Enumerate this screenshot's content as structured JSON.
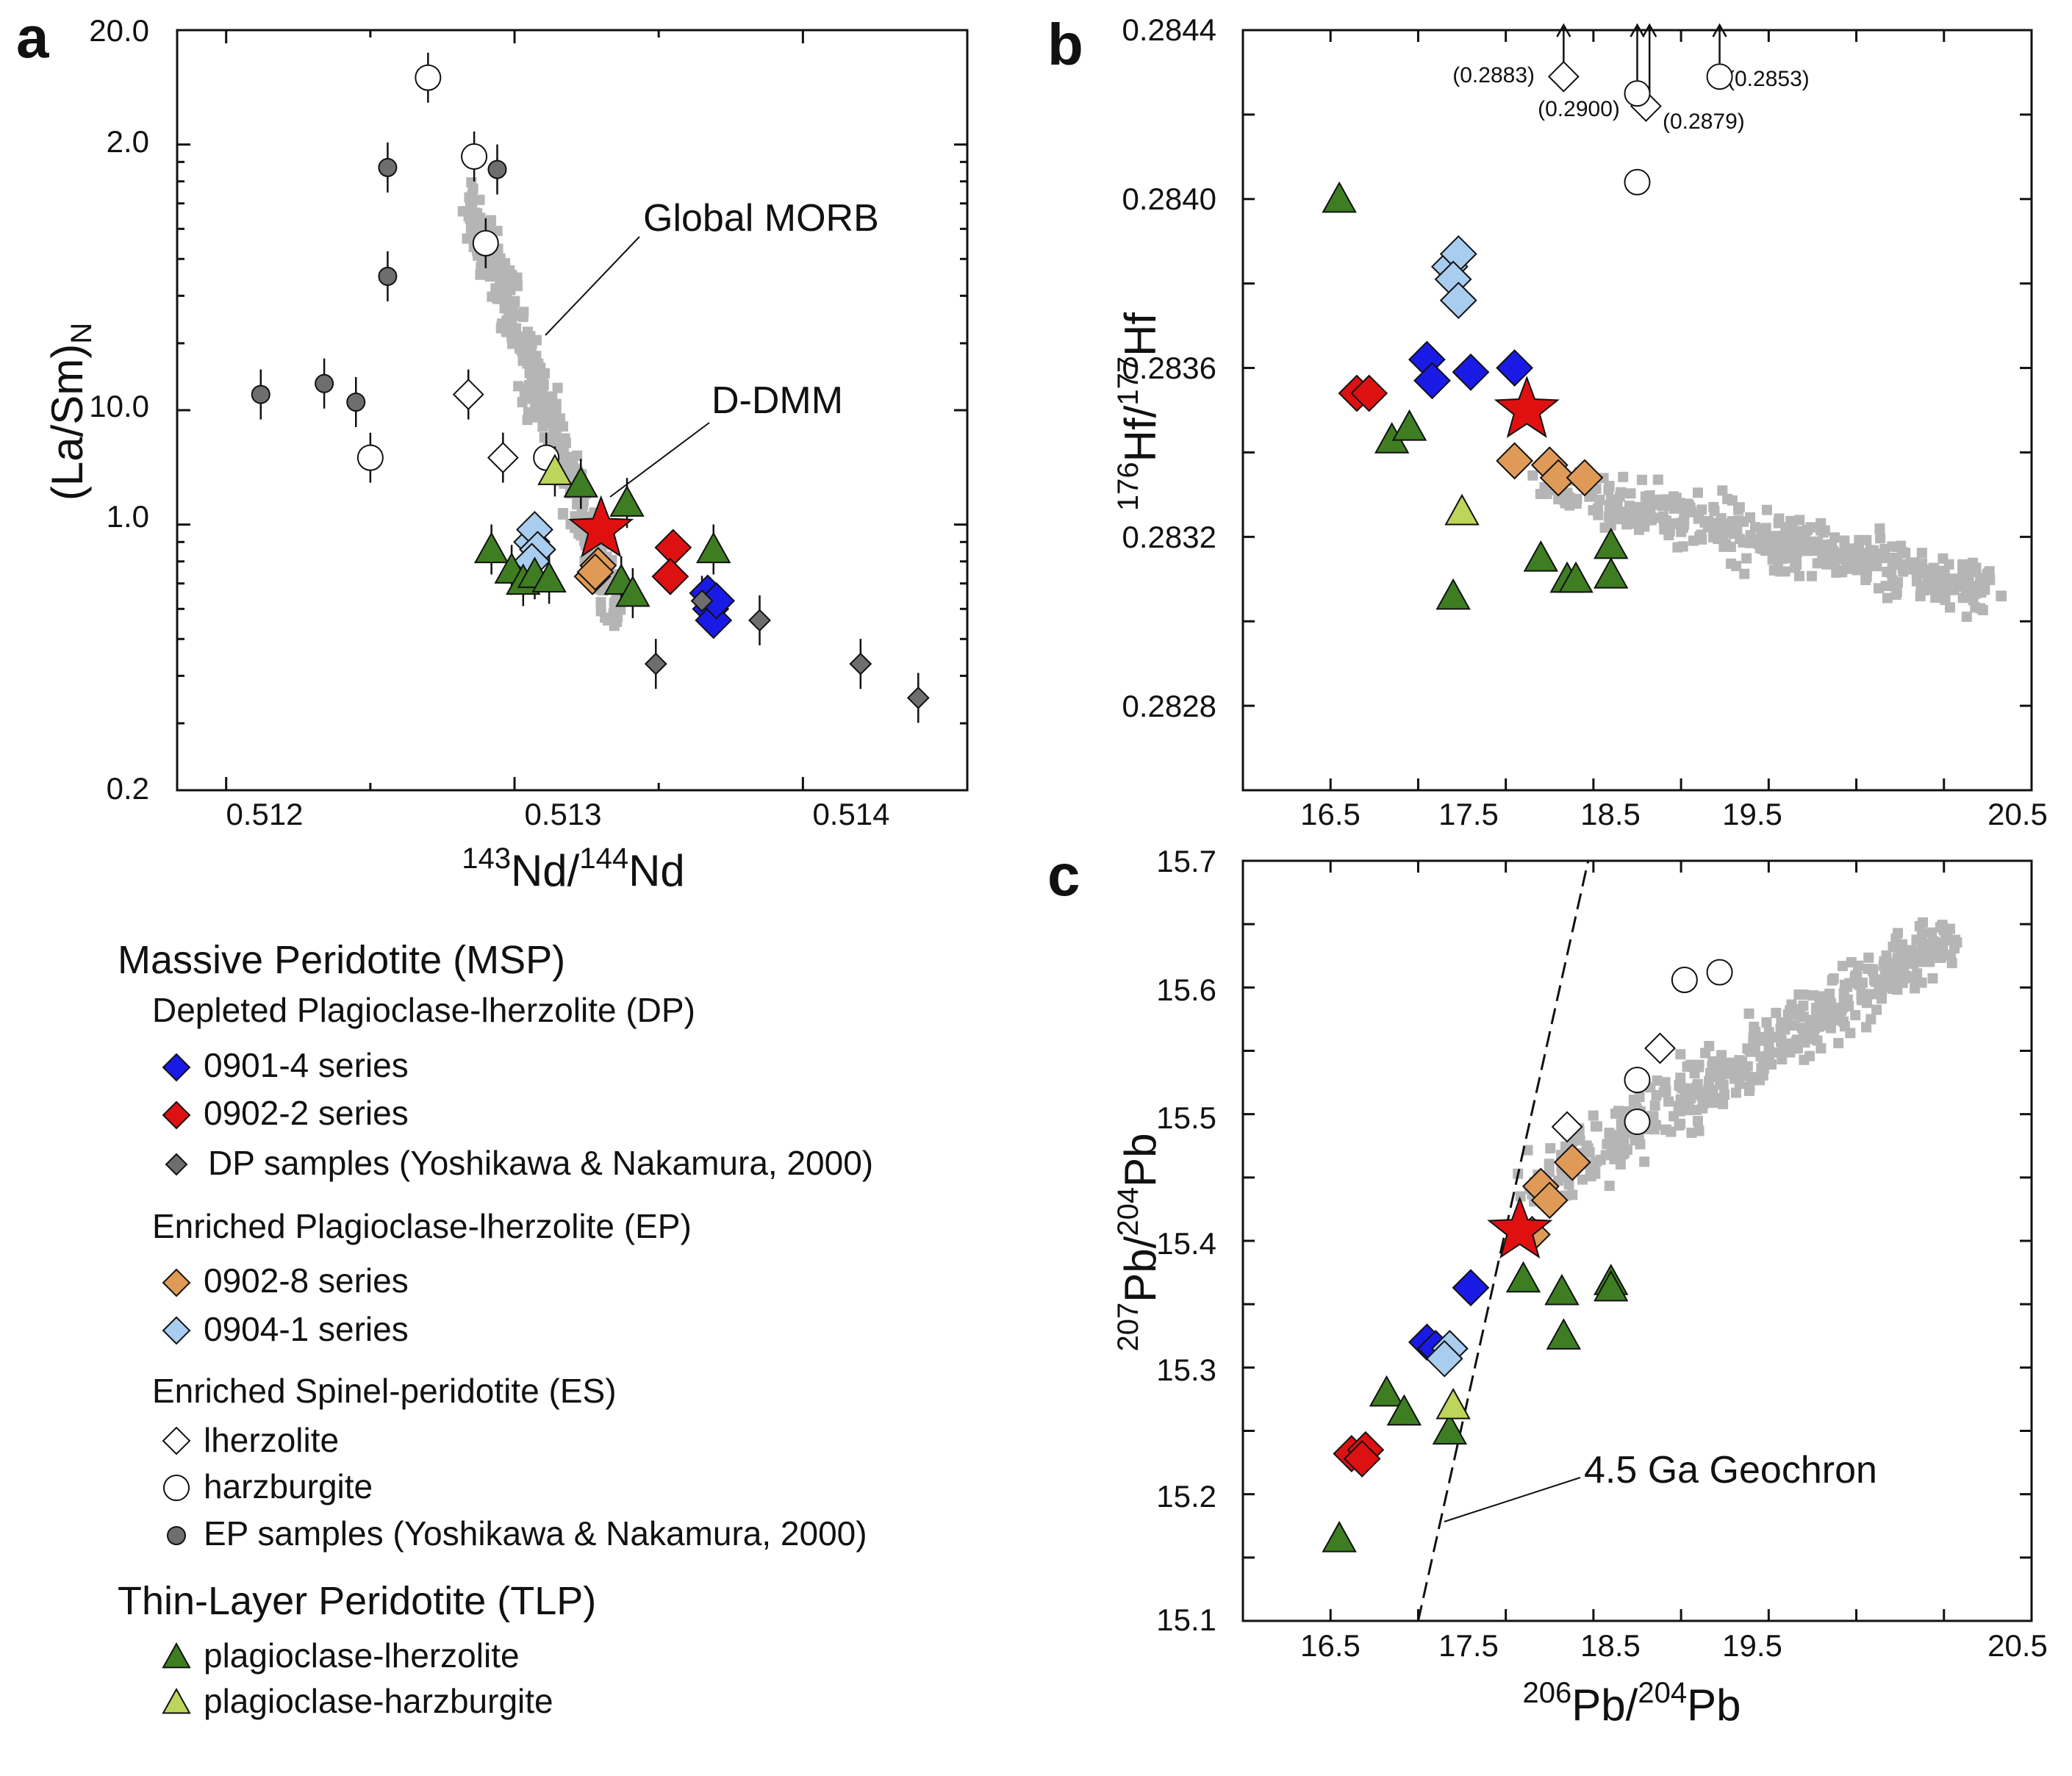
{
  "legend": {
    "groups": [
      {
        "title": "Massive Peridotite (MSP)",
        "subgroups": [
          {
            "title": "Depleted Plagioclase-lherzolite (DP)",
            "items": [
              {
                "key": "dp0901",
                "label": "0901-4 series"
              },
              {
                "key": "dp0902",
                "label": "0902-2 series"
              },
              {
                "key": "dpyn",
                "label": "DP samples (Yoshikawa & Nakamura, 2000)"
              }
            ]
          },
          {
            "title": "Enriched Plagioclase-lherzolite (EP)",
            "items": [
              {
                "key": "ep0902",
                "label": "0902-8 series"
              },
              {
                "key": "ep0904",
                "label": "0904-1 series"
              }
            ]
          },
          {
            "title": "Enriched Spinel-peridotite (ES)",
            "items": [
              {
                "key": "eslh",
                "label": "lherzolite"
              },
              {
                "key": "eshz",
                "label": "harzburgite"
              },
              {
                "key": "epyn",
                "label": "EP samples (Yoshikawa & Nakamura, 2000)"
              }
            ]
          }
        ]
      },
      {
        "title": "Thin-Layer Peridotite (TLP)",
        "subgroups": [
          {
            "title": "",
            "items": [
              {
                "key": "tlplh",
                "label": "plagioclase-lherzolite"
              },
              {
                "key": "tlphz",
                "label": "plagioclase-harzburgite"
              }
            ]
          }
        ]
      }
    ]
  },
  "styles": {
    "dp0901": {
      "shape": "diamond",
      "fill": "#1a1ae6",
      "size": 24
    },
    "dp0902": {
      "shape": "diamond",
      "fill": "#dd1111",
      "size": 24
    },
    "dpyn": {
      "shape": "diamond",
      "fill": "#6e6e6e",
      "size": 14
    },
    "ep0902": {
      "shape": "diamond",
      "fill": "#e09a58",
      "size": 24
    },
    "ep0904": {
      "shape": "diamond",
      "fill": "#a9cdef",
      "size": 24
    },
    "eslh": {
      "shape": "diamond",
      "fill": "#ffffff",
      "size": 20
    },
    "eshz": {
      "shape": "circle",
      "fill": "#ffffff",
      "size": 17
    },
    "epyn": {
      "shape": "circle",
      "fill": "#6e6e6e",
      "size": 12
    },
    "tlplh": {
      "shape": "triangle",
      "fill": "#3e7d22",
      "size": 22
    },
    "tlphz": {
      "shape": "triangle",
      "fill": "#bcd55a",
      "size": 22
    },
    "morb": {
      "shape": "square",
      "fill": "#b5b5b5",
      "size": 7
    },
    "ddmm": {
      "shape": "star",
      "fill": "#e01010",
      "size": 44
    }
  },
  "chart_data": [
    {
      "panel": "a",
      "type": "scatter",
      "xlabel": "143Nd/144Nd",
      "ylabel": "(La/Sm)N",
      "xlim": [
        0.51183,
        0.51457
      ],
      "ylim": [
        0.2,
        20.0
      ],
      "yscale": "log",
      "xticks": [
        "0.512",
        "0.513",
        "0.514"
      ],
      "yticks": [
        "0.2",
        "1.0",
        "2.0",
        "10.0",
        "20.0"
      ],
      "annotations": [
        "Global MORB",
        "D-DMM"
      ],
      "series": [
        {
          "key": "dp0901",
          "points": [
            [
              0.51367,
              0.66
            ],
            [
              0.51368,
              0.6
            ],
            [
              0.51369,
              0.56
            ],
            [
              0.5137,
              0.63
            ]
          ]
        },
        {
          "key": "dp0902",
          "points": [
            [
              0.51355,
              0.87
            ],
            [
              0.51354,
              0.73
            ]
          ]
        },
        {
          "key": "dpyn",
          "points": [
            [
              0.51349,
              0.43
            ],
            [
              0.51365,
              0.63
            ],
            [
              0.51385,
              0.56
            ],
            [
              0.5142,
              0.43
            ],
            [
              0.5144,
              0.35
            ]
          ]
        },
        {
          "key": "ep0902",
          "points": [
            [
              0.51327,
              0.73
            ],
            [
              0.51329,
              0.78
            ],
            [
              0.51328,
              0.75
            ]
          ]
        },
        {
          "key": "ep0904",
          "points": [
            [
              0.51306,
              0.9
            ],
            [
              0.51307,
              0.97
            ],
            [
              0.51308,
              0.86
            ],
            [
              0.51306,
              0.8
            ]
          ]
        },
        {
          "key": "eslh",
          "points": [
            [
              0.51284,
              2.2
            ],
            [
              0.51296,
              1.5
            ]
          ]
        },
        {
          "key": "eshz",
          "points": [
            [
              0.5127,
              15.0
            ],
            [
              0.51286,
              9.3
            ],
            [
              0.5129,
              5.5
            ],
            [
              0.5125,
              1.5
            ],
            [
              0.51311,
              1.5
            ]
          ]
        },
        {
          "key": "epyn",
          "points": [
            [
              0.51212,
              2.2
            ],
            [
              0.51234,
              2.35
            ],
            [
              0.51245,
              2.1
            ],
            [
              0.51256,
              8.7
            ],
            [
              0.51256,
              4.5
            ],
            [
              0.51294,
              8.6
            ]
          ]
        },
        {
          "key": "tlplh",
          "points": [
            [
              0.51292,
              0.86
            ],
            [
              0.51299,
              0.76
            ],
            [
              0.51303,
              0.71
            ],
            [
              0.51307,
              0.74
            ],
            [
              0.51312,
              0.72
            ],
            [
              0.51337,
              0.71
            ],
            [
              0.51341,
              0.66
            ],
            [
              0.51369,
              0.86
            ],
            [
              0.51323,
              1.28
            ],
            [
              0.51339,
              1.14
            ]
          ]
        },
        {
          "key": "tlphz",
          "points": [
            [
              0.51314,
              1.38
            ]
          ]
        },
        {
          "key": "ddmm",
          "points": [
            [
              0.5133,
              0.97
            ]
          ]
        }
      ]
    },
    {
      "panel": "b",
      "type": "scatter",
      "xlabel": "",
      "ylabel": "176Hf/177Hf",
      "xlim": [
        16.0,
        20.5
      ],
      "ylim": [
        0.2826,
        0.2844
      ],
      "xticks": [
        "16.5",
        "17.5",
        "18.5",
        "19.5",
        "20.5"
      ],
      "yticks": [
        "0.2828",
        "0.2832",
        "0.2836",
        "0.2840",
        "0.2844"
      ],
      "annotations": [
        "(0.2883)",
        "(0.2900)",
        "(0.2879)",
        "(0.2853)"
      ],
      "series": [
        {
          "key": "dp0901",
          "points": [
            [
              17.05,
              0.28362
            ],
            [
              17.08,
              0.28357
            ],
            [
              17.3,
              0.28359
            ],
            [
              17.55,
              0.2836
            ]
          ]
        },
        {
          "key": "dp0902",
          "points": [
            [
              16.65,
              0.28354
            ],
            [
              16.72,
              0.28354
            ]
          ]
        },
        {
          "key": "ep0902",
          "points": [
            [
              17.55,
              0.28338
            ],
            [
              17.75,
              0.28337
            ],
            [
              17.8,
              0.28334
            ],
            [
              17.95,
              0.28334
            ]
          ]
        },
        {
          "key": "ep0904",
          "points": [
            [
              17.18,
              0.28384
            ],
            [
              17.23,
              0.28387
            ],
            [
              17.2,
              0.28381
            ],
            [
              17.23,
              0.28376
            ]
          ]
        },
        {
          "key": "eslh",
          "points": [
            [
              17.83,
              0.28429
            ],
            [
              18.3,
              0.28422
            ]
          ]
        },
        {
          "key": "eshz",
          "points": [
            [
              18.25,
              0.28425
            ],
            [
              18.25,
              0.28404
            ],
            [
              18.72,
              0.28429
            ]
          ]
        },
        {
          "key": "tlplh",
          "points": [
            [
              16.55,
              0.284
            ],
            [
              16.85,
              0.28343
            ],
            [
              16.95,
              0.28346
            ],
            [
              17.2,
              0.28306
            ],
            [
              17.7,
              0.28315
            ],
            [
              17.85,
              0.2831
            ],
            [
              17.9,
              0.2831
            ],
            [
              18.1,
              0.28318
            ],
            [
              18.1,
              0.28311
            ]
          ]
        },
        {
          "key": "tlphz",
          "points": [
            [
              17.25,
              0.28326
            ]
          ]
        },
        {
          "key": "ddmm",
          "points": [
            [
              17.62,
              0.2835
            ]
          ]
        }
      ]
    },
    {
      "panel": "c",
      "type": "scatter",
      "xlabel": "206Pb/204Pb",
      "ylabel": "207Pb/204Pb",
      "xlim": [
        16.0,
        20.5
      ],
      "ylim": [
        15.1,
        15.7
      ],
      "xticks": [
        "16.5",
        "17.5",
        "18.5",
        "19.5",
        "20.5"
      ],
      "yticks": [
        "15.1",
        "15.2",
        "15.3",
        "15.4",
        "15.5",
        "15.6",
        "15.7"
      ],
      "annotations": [
        "4.5 Ga Geochron"
      ],
      "geochron_line": [
        [
          17.0,
          15.1
        ],
        [
          17.97,
          15.7
        ]
      ],
      "series": [
        {
          "key": "dp0901",
          "points": [
            [
              17.3,
              15.363
            ],
            [
              17.05,
              15.32
            ],
            [
              17.1,
              15.315
            ]
          ]
        },
        {
          "key": "dp0902",
          "points": [
            [
              16.62,
              15.232
            ],
            [
              16.7,
              15.235
            ],
            [
              16.68,
              15.228
            ]
          ]
        },
        {
          "key": "ep0902",
          "points": [
            [
              17.7,
              15.443
            ],
            [
              17.75,
              15.432
            ],
            [
              17.88,
              15.462
            ],
            [
              17.65,
              15.405
            ]
          ]
        },
        {
          "key": "ep0904",
          "points": [
            [
              17.18,
              15.315
            ],
            [
              17.15,
              15.307
            ]
          ]
        },
        {
          "key": "eslh",
          "points": [
            [
              17.85,
              15.49
            ],
            [
              18.38,
              15.552
            ]
          ]
        },
        {
          "key": "eshz",
          "points": [
            [
              18.25,
              15.527
            ],
            [
              18.25,
              15.494
            ],
            [
              18.52,
              15.606
            ],
            [
              18.72,
              15.612
            ]
          ]
        },
        {
          "key": "tlplh",
          "points": [
            [
              16.55,
              15.165
            ],
            [
              16.82,
              15.28
            ],
            [
              16.92,
              15.265
            ],
            [
              17.18,
              15.25
            ],
            [
              17.6,
              15.37
            ],
            [
              17.82,
              15.36
            ],
            [
              17.83,
              15.325
            ],
            [
              18.1,
              15.368
            ],
            [
              18.1,
              15.363
            ]
          ]
        },
        {
          "key": "tlphz",
          "points": [
            [
              17.2,
              15.27
            ]
          ]
        },
        {
          "key": "ddmm",
          "points": [
            [
              17.58,
              15.408
            ]
          ]
        }
      ]
    }
  ]
}
